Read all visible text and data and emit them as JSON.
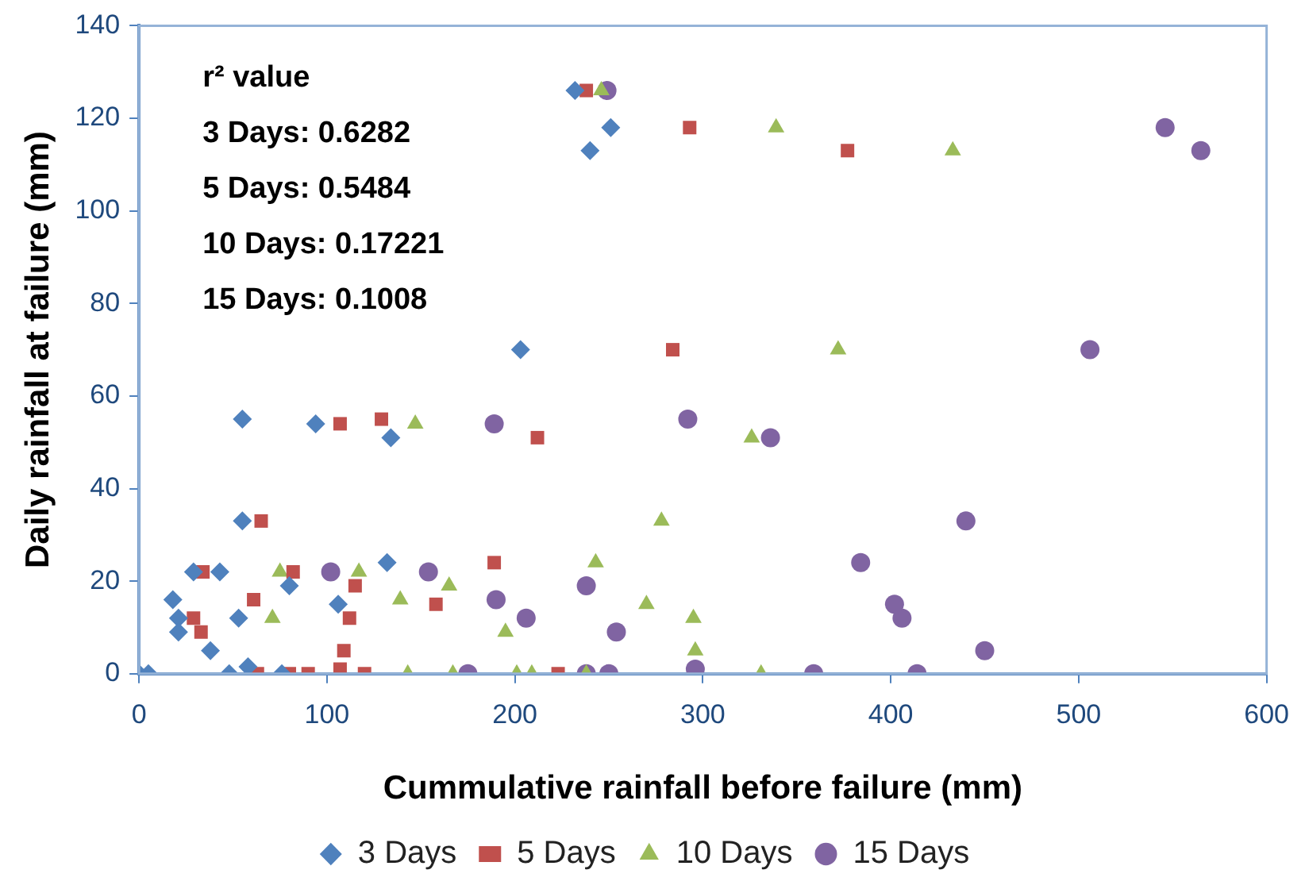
{
  "chart_data": {
    "type": "scatter",
    "xlabel": "Cummulative rainfall before failure (mm)",
    "ylabel": "Daily rainfall at failure (mm)",
    "xlim": [
      0,
      600
    ],
    "xticks": [
      0,
      100,
      200,
      300,
      400,
      500,
      600
    ],
    "ylim": [
      0,
      140
    ],
    "yticks": [
      0,
      20,
      40,
      60,
      80,
      100,
      120,
      140
    ],
    "grid": false,
    "legend": "bottom",
    "annotations": [
      "r² value",
      "3 Days: 0.6282",
      "5 Days: 0.5484",
      "10 Days: 0.17221",
      "15 Days: 0.1008"
    ],
    "series": [
      {
        "name": "3 Days",
        "color": "#4f81bd",
        "marker": "diamond",
        "x": [
          0,
          5,
          18,
          21,
          21,
          29,
          43,
          38,
          53,
          48,
          58,
          55,
          55,
          76,
          80,
          94,
          106,
          134,
          132,
          203,
          232,
          251,
          240
        ],
        "values": [
          0,
          0,
          16,
          12,
          9,
          22,
          22,
          5,
          12,
          0,
          1.5,
          55,
          33,
          0,
          19,
          54,
          15,
          51,
          24,
          70,
          126,
          118,
          113
        ]
      },
      {
        "name": "5 Days",
        "color": "#c0504d",
        "marker": "square",
        "x": [
          34,
          29,
          33,
          65,
          61,
          63,
          80,
          90,
          107,
          129,
          82,
          115,
          112,
          109,
          107,
          120,
          189,
          158,
          238,
          293,
          377,
          284,
          212,
          223
        ],
        "values": [
          22,
          12,
          9,
          33,
          16,
          0,
          0,
          0,
          54,
          55,
          22,
          19,
          12,
          5,
          1,
          0,
          24,
          15,
          126,
          118,
          113,
          70,
          51,
          0
        ]
      },
      {
        "name": "10 Days",
        "color": "#9bbb59",
        "marker": "triangle",
        "x": [
          147,
          75,
          71,
          117,
          139,
          165,
          143,
          167,
          195,
          201,
          246,
          339,
          372,
          326,
          278,
          243,
          270,
          295,
          296,
          209,
          238,
          331,
          433
        ],
        "values": [
          54,
          22,
          12,
          22,
          16,
          19,
          0,
          0,
          9,
          0,
          126,
          118,
          70,
          51,
          33,
          24,
          15,
          12,
          5,
          0,
          0,
          0,
          113
        ]
      },
      {
        "name": "15 Days",
        "color": "#8064a2",
        "marker": "circle",
        "x": [
          546,
          565,
          506,
          440,
          450,
          414,
          406,
          249,
          292,
          336,
          384,
          402,
          238,
          206,
          254,
          296,
          238,
          250,
          359,
          189,
          102,
          154,
          190,
          175
        ],
        "values": [
          118,
          113,
          70,
          33,
          5,
          0,
          12,
          126,
          55,
          51,
          24,
          15,
          19,
          12,
          9,
          1,
          0,
          0,
          0,
          54,
          22,
          22,
          16,
          0
        ]
      }
    ]
  }
}
